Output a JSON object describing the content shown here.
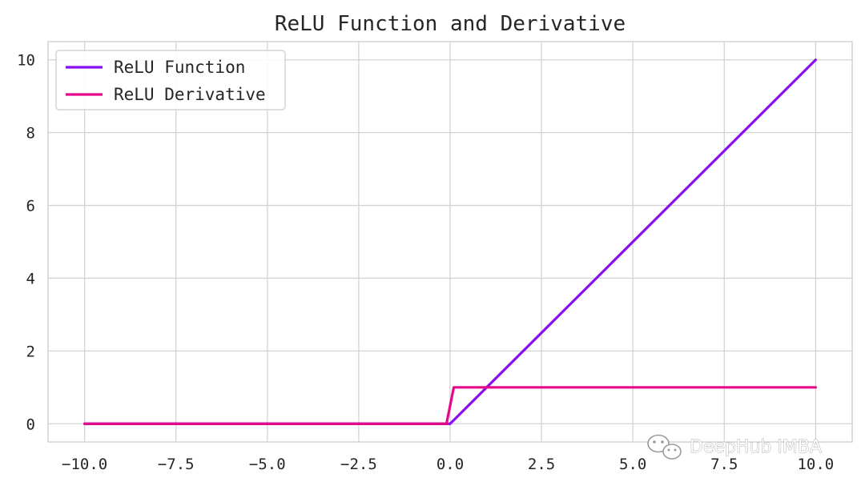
{
  "chart_data": {
    "type": "line",
    "title": "ReLU Function and Derivative",
    "xlabel": "",
    "ylabel": "",
    "xlim": [
      -11,
      11
    ],
    "ylim": [
      -0.5,
      10.5
    ],
    "x_ticks": [
      -10.0,
      -7.5,
      -5.0,
      -2.5,
      0.0,
      2.5,
      5.0,
      7.5,
      10.0
    ],
    "x_tick_labels": [
      "−10.0",
      "−7.5",
      "−5.0",
      "−2.5",
      "0.0",
      "2.5",
      "5.0",
      "7.5",
      "10.0"
    ],
    "y_ticks": [
      0,
      2,
      4,
      6,
      8,
      10
    ],
    "y_tick_labels": [
      "0",
      "2",
      "4",
      "6",
      "8",
      "10"
    ],
    "grid": true,
    "legend_position": "top-left",
    "series": [
      {
        "name": "ReLU Function",
        "color": "#8a0ff0",
        "x": [
          -10,
          -0.1,
          0,
          0.1,
          10
        ],
        "y": [
          0,
          0,
          0,
          0.1,
          10
        ]
      },
      {
        "name": "ReLU Derivative",
        "color": "#e5078a",
        "x": [
          -10,
          -0.1,
          0.1,
          10
        ],
        "y": [
          0,
          0,
          1,
          1
        ]
      }
    ]
  },
  "watermark": {
    "text": "DeepHub IMBA",
    "icon": "wechat-icon"
  }
}
